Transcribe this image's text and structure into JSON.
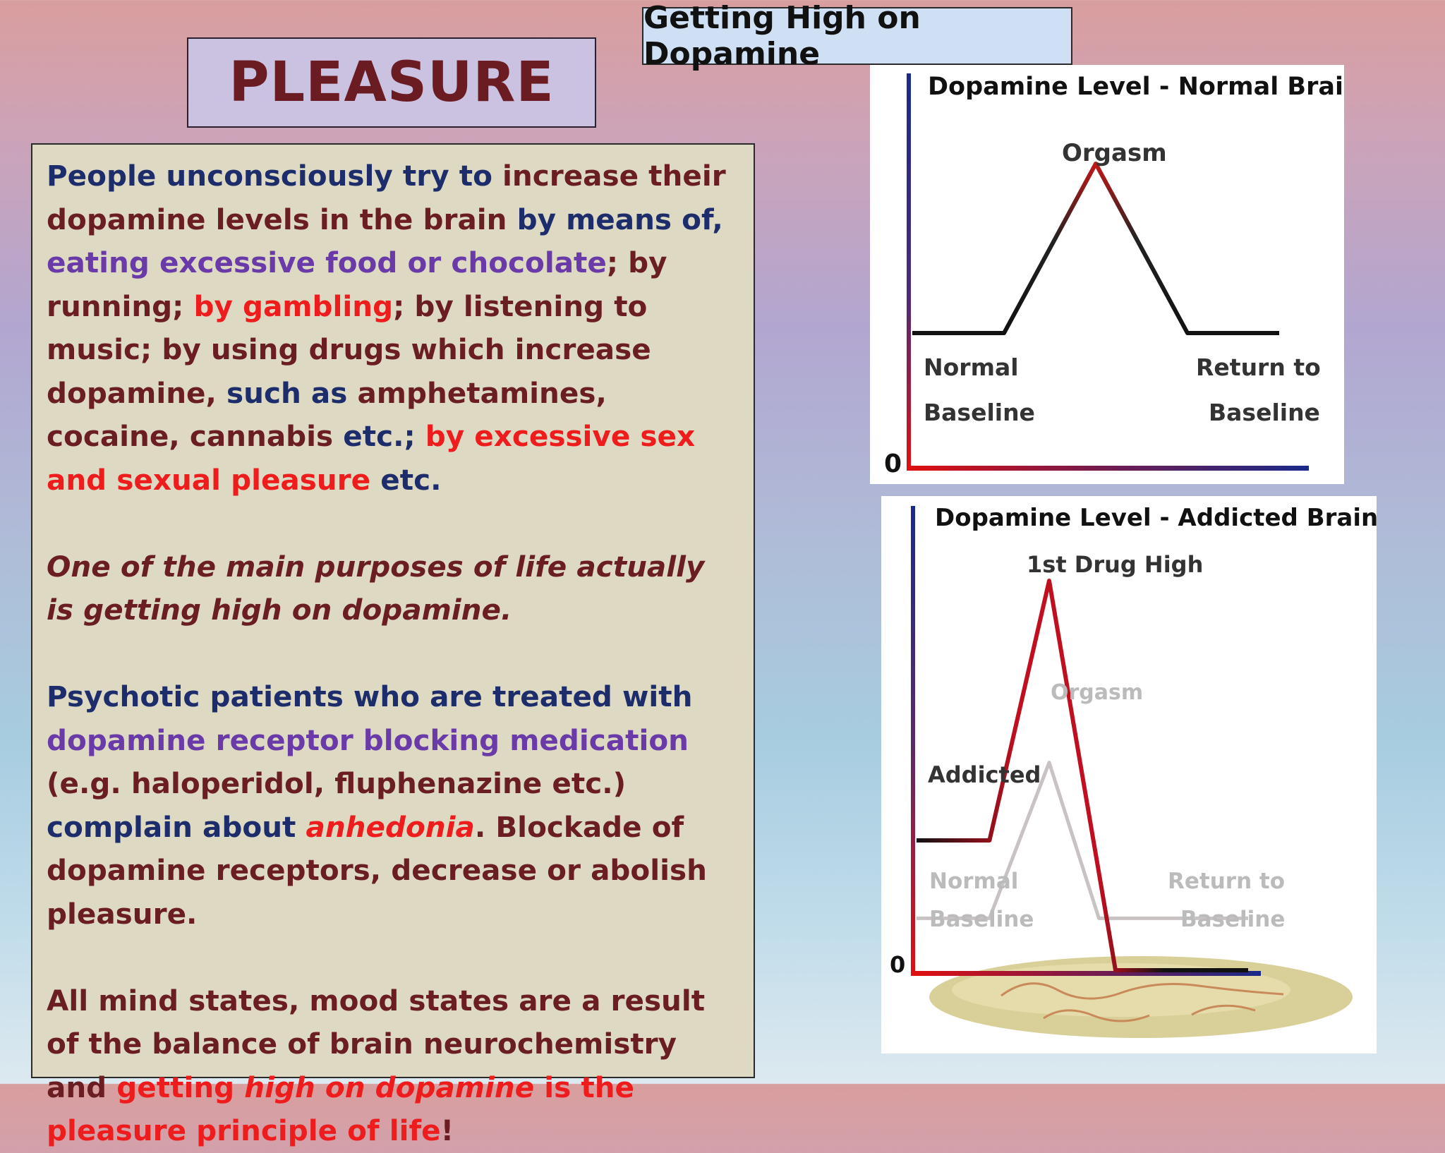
{
  "title": "PLEASURE",
  "subtitle": "Getting High on Dopamine",
  "paragraphs": [
    {
      "style": "normal",
      "runs": [
        {
          "text": "People unconsciously try to ",
          "color": "navy"
        },
        {
          "text": "increase their dopamine levels in the brain",
          "color": "maroon"
        },
        {
          "text": " by means of, ",
          "color": "navy"
        },
        {
          "text": "eating excessive food or chocolate",
          "color": "purple"
        },
        {
          "text": "; by running; ",
          "color": "maroon"
        },
        {
          "text": "by gambling",
          "color": "red"
        },
        {
          "text": "; by listening to music; by using drugs which increase dopamine, ",
          "color": "maroon"
        },
        {
          "text": "such as ",
          "color": "navy"
        },
        {
          "text": "amphetamines, cocaine, cannabis",
          "color": "maroon"
        },
        {
          "text": " etc.; ",
          "color": "navy"
        },
        {
          "text": "by excessive sex and sexual pleasure",
          "color": "red"
        },
        {
          "text": " etc.",
          "color": "navy"
        }
      ]
    },
    {
      "style": "italic",
      "runs": [
        {
          "text": "One of the main purposes of life actually is getting high on dopamine",
          "color": "maroon",
          "italic": true
        },
        {
          "text": ".",
          "color": "maroon"
        }
      ]
    },
    {
      "style": "normal",
      "runs": [
        {
          "text": "Psychotic patients who are treated with ",
          "color": "navy"
        },
        {
          "text": "dopamine receptor blocking medication",
          "color": "purple"
        },
        {
          "text": " (e.g. haloperidol, fluphenazine etc.)",
          "color": "maroon"
        },
        {
          "text": " complain about ",
          "color": "navy"
        },
        {
          "text": "anhedonia",
          "color": "red",
          "italic": true
        },
        {
          "text": ". Blockade of dopamine receptors, decrease or abolish pleasure.",
          "color": "maroon"
        }
      ]
    },
    {
      "style": "normal",
      "runs": [
        {
          "text": "All mind states, mood states are a result of the balance of brain neurochemistry and ",
          "color": "maroon"
        },
        {
          "text": "getting ",
          "color": "red"
        },
        {
          "text": "high on dopamine",
          "color": "red",
          "italic": true
        },
        {
          "text": " is the pleasure principle of life",
          "color": "red"
        },
        {
          "text": "!",
          "color": "maroon"
        }
      ]
    }
  ],
  "colors": {
    "navy": "#1d2d6b",
    "maroon": "#6b1e22",
    "purple": "#6a3aa8",
    "red": "#ee1c1c"
  },
  "chart_data": [
    {
      "type": "line",
      "title": "Dopamine Level - Normal Brain",
      "y_zero_label": "0",
      "series": [
        {
          "values": [
            [
              0,
              1
            ],
            [
              0.25,
              1
            ],
            [
              0.5,
              4
            ],
            [
              0.75,
              1
            ],
            [
              1,
              1
            ]
          ],
          "color": "#111111"
        }
      ],
      "annotations": {
        "peak": "Orgasm",
        "left_line1": "Normal",
        "left_line2": "Baseline",
        "right_line1": "Return to",
        "right_line2": "Baseline"
      }
    },
    {
      "type": "line",
      "title": "Dopamine Level - Addicted Brain",
      "y_zero_label": "0",
      "series": [
        {
          "values": [
            [
              0,
              2
            ],
            [
              0.22,
              2
            ],
            [
              0.4,
              6
            ],
            [
              0.6,
              0
            ],
            [
              1,
              0
            ]
          ],
          "color": "#b0122a"
        },
        {
          "values": [
            [
              0,
              0.8
            ],
            [
              0.22,
              0.8
            ],
            [
              0.4,
              3.2
            ],
            [
              0.55,
              0.8
            ],
            [
              1,
              0.8
            ]
          ],
          "color": "#c8c2c2"
        }
      ],
      "annotations": {
        "peak": "1st Drug High",
        "faded_peak": "Orgasm",
        "left_mid": "Addicted",
        "left_line1": "Normal",
        "left_line2": "Baseline",
        "right_line1": "Return to",
        "right_line2": "Baseline"
      }
    }
  ]
}
